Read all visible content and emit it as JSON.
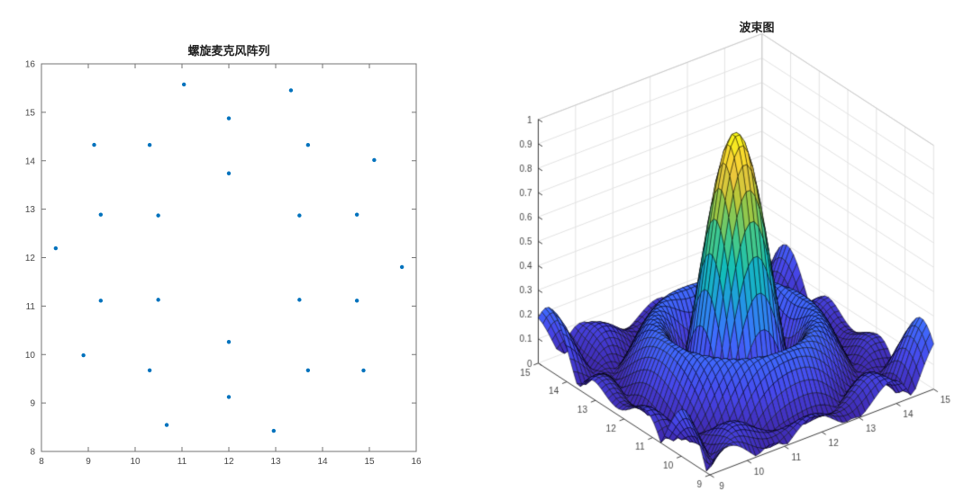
{
  "page": {
    "background": "#ffffff"
  },
  "chart_data": [
    {
      "type": "scatter",
      "title": "螺旋麦克风阵列",
      "xlabel": "",
      "ylabel": "",
      "xlim": [
        8,
        16
      ],
      "ylim": [
        8,
        16
      ],
      "x_ticks": [
        8,
        9,
        10,
        11,
        12,
        13,
        14,
        15,
        16
      ],
      "y_ticks": [
        8,
        9,
        10,
        11,
        12,
        13,
        14,
        15,
        16
      ],
      "grid": false,
      "marker": "filled-circle",
      "marker_color": "#0072BD",
      "marker_radius_px": 2.2,
      "point_count": 26,
      "rings": [
        {
          "radius": 1.74,
          "count": 6,
          "start_angle_deg": 30
        },
        {
          "radius": 2.875,
          "count": 10,
          "start_angle_deg": 18
        },
        {
          "radius": 3.7,
          "count": 10,
          "start_angle_deg": 33
        }
      ],
      "center": [
        12,
        12
      ],
      "points": [
        [
          13.507,
          12.87
        ],
        [
          12.0,
          13.74
        ],
        [
          10.493,
          12.87
        ],
        [
          10.493,
          11.13
        ],
        [
          12.0,
          10.26
        ],
        [
          13.507,
          11.13
        ],
        [
          14.734,
          12.888
        ],
        [
          13.69,
          14.326
        ],
        [
          12.0,
          14.875
        ],
        [
          10.31,
          14.326
        ],
        [
          9.266,
          12.888
        ],
        [
          9.266,
          11.112
        ],
        [
          10.31,
          9.674
        ],
        [
          12.0,
          9.125
        ],
        [
          13.69,
          9.674
        ],
        [
          14.734,
          11.112
        ],
        [
          15.103,
          14.015
        ],
        [
          13.326,
          15.454
        ],
        [
          11.042,
          15.574
        ],
        [
          9.125,
          14.328
        ],
        [
          8.305,
          12.194
        ],
        [
          8.897,
          9.985
        ],
        [
          10.674,
          8.546
        ],
        [
          12.958,
          8.426
        ],
        [
          14.875,
          9.672
        ],
        [
          15.695,
          11.807
        ]
      ],
      "axis_color": "#737373",
      "label_color": "#464646",
      "title_color": "#1f1f1f"
    },
    {
      "type": "surface3d",
      "title": "波束图",
      "x_range": [
        9,
        15
      ],
      "y_range": [
        9,
        15
      ],
      "z_range": [
        0,
        1
      ],
      "x_ticks": [
        9,
        10,
        11,
        12,
        13,
        14,
        15
      ],
      "y_ticks": [
        9,
        10,
        11,
        12,
        13,
        14,
        15
      ],
      "z_ticks": [
        0,
        0.1,
        0.2,
        0.3,
        0.4,
        0.5,
        0.6,
        0.7,
        0.8,
        0.9,
        1
      ],
      "surface": {
        "description": "Normalized beam pattern |B(x,y)| of the 26-microphone spiral array steered to (12,12): tall narrow main lobe reaching ~0.95, ring null around it, low sidelobe ripples under ~0.2 on a near-zero base",
        "peak_xy": [
          12,
          12
        ],
        "peak_value": 1,
        "beam_k": 0.72,
        "grid_points": 50
      },
      "view": {
        "azimuth": -37.5,
        "elevation": 30,
        "projection": "orthographic"
      },
      "colormap": {
        "name": "parula",
        "stops": [
          [
            0,
            "#3e26a8"
          ],
          [
            0.125,
            "#4747eb"
          ],
          [
            0.25,
            "#3e6fff"
          ],
          [
            0.375,
            "#2397e4"
          ],
          [
            0.5,
            "#12beb9"
          ],
          [
            0.625,
            "#4acb86"
          ],
          [
            0.75,
            "#abc739"
          ],
          [
            0.875,
            "#f7c83c"
          ],
          [
            1,
            "#f9fb14"
          ]
        ]
      },
      "mesh_color": "#000000",
      "grid_color": "#e2e2e2",
      "box_edge_color": "#c9c9c9",
      "axis_color": "#3d3d3d",
      "label_color": "#464646",
      "title_color": "#1f1f1f"
    }
  ]
}
